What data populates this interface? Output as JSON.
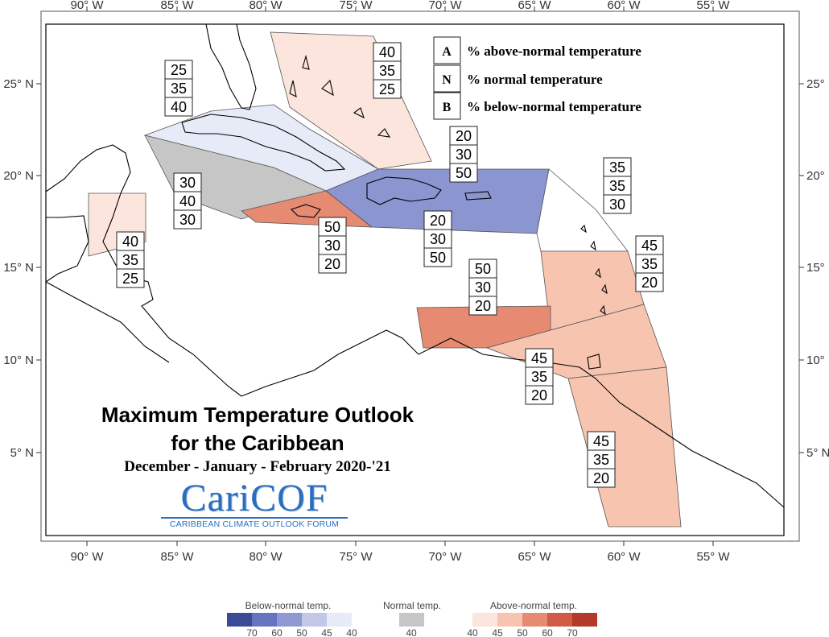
{
  "axes": {
    "longitude_labels": [
      "90° W",
      "85° W",
      "80° W",
      "75° W",
      "70° W",
      "65° W",
      "60° W",
      "55° W"
    ],
    "latitude_labels": [
      "25° N",
      "20° N",
      "15° N",
      "10° N",
      "5° N"
    ]
  },
  "key": {
    "rows": [
      {
        "letter": "A",
        "text": "% above-normal temperature"
      },
      {
        "letter": "N",
        "text": "% normal temperature"
      },
      {
        "letter": "B",
        "text": "% below-normal temperature"
      }
    ]
  },
  "regions": [
    {
      "id": "bahamas",
      "fill": "#fbe5dc",
      "probs": [
        "40",
        "35",
        "25"
      ]
    },
    {
      "id": "cuba",
      "fill": "#e6ebf7",
      "probs": [
        "25",
        "35",
        "40"
      ]
    },
    {
      "id": "cayman",
      "fill": "#c6c6c6",
      "probs": [
        "30",
        "40",
        "30"
      ]
    },
    {
      "id": "jamaica",
      "fill": "#e68a72",
      "probs": [
        "50",
        "30",
        "20"
      ]
    },
    {
      "id": "hispaniola-pr",
      "fill": "#8b95d0",
      "probs": [
        "20",
        "30",
        "50"
      ]
    },
    {
      "id": "hispaniola-pr-label2",
      "fill": "#8b95d0",
      "probs": [
        "20",
        "30",
        "50"
      ]
    },
    {
      "id": "leeward-north",
      "fill": "#ffffff",
      "probs": [
        "35",
        "35",
        "30"
      ]
    },
    {
      "id": "leeward-south",
      "fill": "#f7c4b0",
      "probs": [
        "45",
        "35",
        "20"
      ]
    },
    {
      "id": "abc-islands",
      "fill": "#e68a72",
      "probs": [
        "50",
        "30",
        "20"
      ]
    },
    {
      "id": "trinidad",
      "fill": "#f7c4b0",
      "probs": [
        "45",
        "35",
        "20"
      ]
    },
    {
      "id": "guianas",
      "fill": "#f7c4b0",
      "probs": [
        "45",
        "35",
        "20"
      ]
    },
    {
      "id": "belize",
      "fill": "#fbe5dc",
      "probs": [
        "40",
        "35",
        "25"
      ]
    }
  ],
  "title": {
    "line1": "Maximum Temperature Outlook",
    "line2": "for the Caribbean",
    "subtitle": "December - January - February 2020-'21"
  },
  "logo": {
    "name": "CariCOF",
    "tagline": "CARIBBEAN CLIMATE OUTLOOK FORUM"
  },
  "legend": {
    "below": {
      "title": "Below-normal temp.",
      "colors": [
        "#3b4a96",
        "#6673c0",
        "#8f98d3",
        "#c2c7e8",
        "#e8ebf7"
      ],
      "ticks": [
        "70",
        "60",
        "50",
        "45",
        "40"
      ]
    },
    "normal": {
      "title": "Normal temp.",
      "color": "#c6c6c6",
      "ticks": [
        "40"
      ]
    },
    "above": {
      "title": "Above-normal temp.",
      "colors": [
        "#fbe5dc",
        "#f7c4b0",
        "#e68a72",
        "#cf5a45",
        "#b33a2a"
      ],
      "ticks": [
        "40",
        "45",
        "50",
        "60",
        "70"
      ]
    }
  }
}
